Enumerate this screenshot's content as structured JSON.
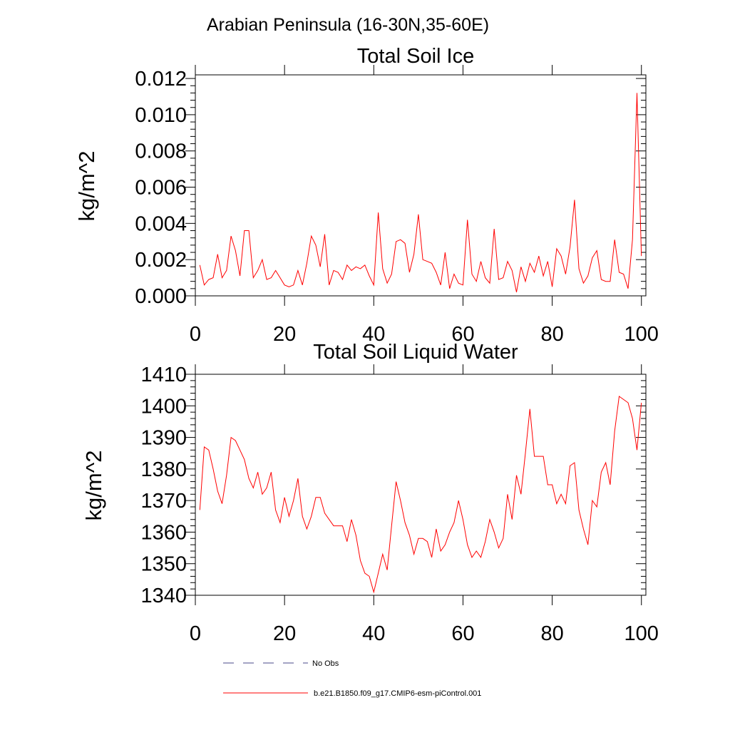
{
  "figure": {
    "title": "Arabian Peninsula (16-30N,35-60E)"
  },
  "chart_data": [
    {
      "type": "line",
      "title": "Total Soil Ice",
      "xlabel": "",
      "ylabel": "kg/m^2",
      "xlim": [
        0,
        101
      ],
      "ylim": [
        0,
        0.0122
      ],
      "xticks": [
        0,
        20,
        40,
        60,
        80,
        100
      ],
      "yticks": [
        0,
        0.002,
        0.004,
        0.006,
        0.008,
        0.01,
        0.012
      ],
      "ytick_labels": [
        "0.000",
        "0.002",
        "0.004",
        "0.006",
        "0.008",
        "0.010",
        "0.012"
      ],
      "series": [
        {
          "name": "b.e21.B1850.f09_g17.CMIP6-esm-piControl.001",
          "color": "#ff0000",
          "x_start": 1,
          "x_step": 1,
          "values": [
            0.0017,
            0.0006,
            0.0009,
            0.001,
            0.0023,
            0.001,
            0.0014,
            0.0033,
            0.0025,
            0.0011,
            0.0036,
            0.0036,
            0.001,
            0.0014,
            0.002,
            0.0009,
            0.001,
            0.0014,
            0.001,
            0.0006,
            0.0005,
            0.0006,
            0.0014,
            0.0006,
            0.0018,
            0.0033,
            0.0028,
            0.0016,
            0.0034,
            0.0006,
            0.0014,
            0.0013,
            0.0009,
            0.0017,
            0.0014,
            0.0016,
            0.0015,
            0.0017,
            0.0011,
            0.0006,
            0.0046,
            0.0015,
            0.0007,
            0.0012,
            0.003,
            0.0031,
            0.0029,
            0.0013,
            0.0023,
            0.0045,
            0.002,
            0.0019,
            0.0018,
            0.0013,
            0.0006,
            0.0024,
            0.0004,
            0.0012,
            0.0007,
            0.0006,
            0.0042,
            0.0012,
            0.0008,
            0.0019,
            0.001,
            0.0007,
            0.0037,
            0.0009,
            0.001,
            0.0019,
            0.0014,
            0.0002,
            0.0016,
            0.0008,
            0.0018,
            0.0013,
            0.0022,
            0.0011,
            0.0019,
            0.0005,
            0.0026,
            0.0022,
            0.0012,
            0.0027,
            0.0053,
            0.0015,
            0.0007,
            0.0011,
            0.0021,
            0.0025,
            0.0009,
            0.0008,
            0.0008,
            0.0031,
            0.0013,
            0.0012,
            0.0004,
            0.0031,
            0.0112,
            0.0022
          ]
        }
      ]
    },
    {
      "type": "line",
      "title": "Total Soil Liquid Water",
      "xlabel": "",
      "ylabel": "kg/m^2",
      "xlim": [
        0,
        101
      ],
      "ylim": [
        1340,
        1410
      ],
      "xticks": [
        0,
        20,
        40,
        60,
        80,
        100
      ],
      "yticks": [
        1340,
        1350,
        1360,
        1370,
        1380,
        1390,
        1400,
        1410
      ],
      "ytick_labels": [
        "1340",
        "1350",
        "1360",
        "1370",
        "1380",
        "1390",
        "1400",
        "1410"
      ],
      "series": [
        {
          "name": "b.e21.B1850.f09_g17.CMIP6-esm-piControl.001",
          "color": "#ff0000",
          "x_start": 1,
          "x_step": 1,
          "values": [
            1367,
            1387,
            1386,
            1380,
            1373,
            1369,
            1378,
            1390,
            1389,
            1386,
            1383,
            1377,
            1374,
            1379,
            1372,
            1374,
            1379,
            1367,
            1363,
            1371,
            1365,
            1370,
            1377,
            1365,
            1361,
            1365,
            1371,
            1371,
            1366,
            1364,
            1362,
            1362,
            1362,
            1357,
            1364,
            1359,
            1351,
            1347,
            1346,
            1341,
            1347,
            1353,
            1348,
            1362,
            1376,
            1370,
            1363,
            1359,
            1353,
            1358,
            1358,
            1357,
            1352,
            1361,
            1354,
            1356,
            1360,
            1363,
            1370,
            1364,
            1356,
            1352,
            1354,
            1352,
            1357,
            1364,
            1360,
            1355,
            1358,
            1372,
            1364,
            1378,
            1372,
            1385,
            1399,
            1384,
            1384,
            1384,
            1375,
            1375,
            1369,
            1372,
            1369,
            1381,
            1382,
            1367,
            1361,
            1356,
            1370,
            1368,
            1379,
            1382,
            1375,
            1392,
            1403,
            1402,
            1401,
            1396,
            1386,
            1401
          ]
        }
      ]
    }
  ],
  "legend": {
    "items": [
      {
        "label": "No Obs",
        "color": "#4a4a8a",
        "style": "dashed"
      },
      {
        "label": "b.e21.B1850.f09_g17.CMIP6-esm-piControl.001",
        "color": "#ff0000",
        "style": "solid"
      }
    ]
  }
}
